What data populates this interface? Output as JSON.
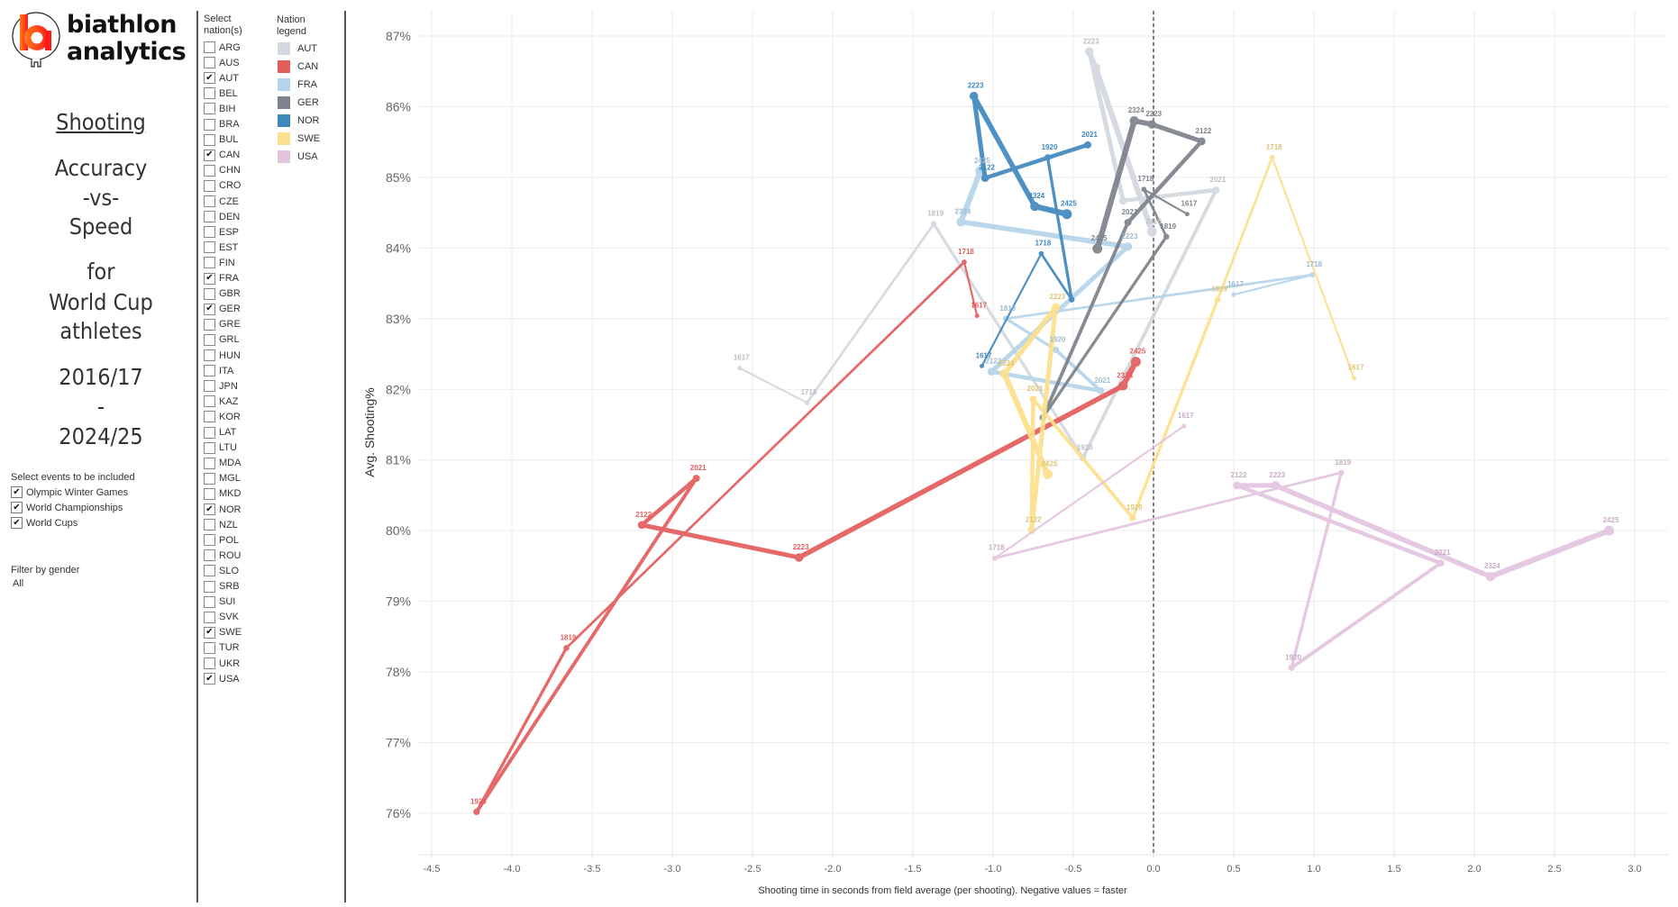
{
  "logo": {
    "line1": "biathlon",
    "line2": "analytics",
    "accent_color": "#ff3b1f"
  },
  "title": {
    "lines": [
      "Shooting",
      "Accuracy",
      "-vs-",
      "Speed",
      "for",
      "World Cup",
      "athletes",
      "2016/17",
      "-",
      "2024/25"
    ]
  },
  "events_filter": {
    "label": "Select events to be included",
    "items": [
      {
        "label": "Olympic Winter Games",
        "checked": true
      },
      {
        "label": "World Championships",
        "checked": true
      },
      {
        "label": "World Cups",
        "checked": true
      }
    ]
  },
  "gender_filter": {
    "label": "Filter by gender",
    "value": "All"
  },
  "nation_select": {
    "label_line1": "Select",
    "label_line2": "nation(s)",
    "items": [
      {
        "code": "ARG",
        "checked": false
      },
      {
        "code": "AUS",
        "checked": false
      },
      {
        "code": "AUT",
        "checked": true
      },
      {
        "code": "BEL",
        "checked": false
      },
      {
        "code": "BIH",
        "checked": false
      },
      {
        "code": "BRA",
        "checked": false
      },
      {
        "code": "BUL",
        "checked": false
      },
      {
        "code": "CAN",
        "checked": true
      },
      {
        "code": "CHN",
        "checked": false
      },
      {
        "code": "CRO",
        "checked": false
      },
      {
        "code": "CZE",
        "checked": false
      },
      {
        "code": "DEN",
        "checked": false
      },
      {
        "code": "ESP",
        "checked": false
      },
      {
        "code": "EST",
        "checked": false
      },
      {
        "code": "FIN",
        "checked": false
      },
      {
        "code": "FRA",
        "checked": true
      },
      {
        "code": "GBR",
        "checked": false
      },
      {
        "code": "GER",
        "checked": true
      },
      {
        "code": "GRE",
        "checked": false
      },
      {
        "code": "GRL",
        "checked": false
      },
      {
        "code": "HUN",
        "checked": false
      },
      {
        "code": "ITA",
        "checked": false
      },
      {
        "code": "JPN",
        "checked": false
      },
      {
        "code": "KAZ",
        "checked": false
      },
      {
        "code": "KOR",
        "checked": false
      },
      {
        "code": "LAT",
        "checked": false
      },
      {
        "code": "LTU",
        "checked": false
      },
      {
        "code": "MDA",
        "checked": false
      },
      {
        "code": "MGL",
        "checked": false
      },
      {
        "code": "MKD",
        "checked": false
      },
      {
        "code": "NOR",
        "checked": true
      },
      {
        "code": "NZL",
        "checked": false
      },
      {
        "code": "POL",
        "checked": false
      },
      {
        "code": "ROU",
        "checked": false
      },
      {
        "code": "SLO",
        "checked": false
      },
      {
        "code": "SRB",
        "checked": false
      },
      {
        "code": "SUI",
        "checked": false
      },
      {
        "code": "SVK",
        "checked": false
      },
      {
        "code": "SWE",
        "checked": true
      },
      {
        "code": "TUR",
        "checked": false
      },
      {
        "code": "UKR",
        "checked": false
      },
      {
        "code": "USA",
        "checked": true
      }
    ]
  },
  "nation_legend": {
    "label_line1": "Nation",
    "label_line2": "legend",
    "items": [
      {
        "code": "AUT",
        "color": "#d3d9e0"
      },
      {
        "code": "CAN",
        "color": "#e35d5d"
      },
      {
        "code": "FRA",
        "color": "#b5d4eb"
      },
      {
        "code": "GER",
        "color": "#7d838c"
      },
      {
        "code": "NOR",
        "color": "#3f88bd"
      },
      {
        "code": "SWE",
        "color": "#fde08c"
      },
      {
        "code": "USA",
        "color": "#e3c4df"
      }
    ]
  },
  "chart_data": {
    "type": "line",
    "title": "Shooting Accuracy -vs- Speed",
    "xlabel": "Shooting time in seconds from field average (per shooting). Negative values = faster",
    "ylabel": "Avg. Shooting%",
    "xlim": [
      -4.55,
      3.2
    ],
    "ylim": [
      75.4,
      87.35
    ],
    "x_ticks": [
      "-4.5",
      "-4.0",
      "-3.5",
      "-3.0",
      "-2.5",
      "-2.0",
      "-1.5",
      "-1.0",
      "-0.5",
      "0.0",
      "0.5",
      "1.0",
      "1.5",
      "2.0",
      "2.5",
      "3.0"
    ],
    "x_tick_values": [
      -4.5,
      -4.0,
      -3.5,
      -3.0,
      -2.5,
      -2.0,
      -1.5,
      -1.0,
      -0.5,
      0.0,
      0.5,
      1.0,
      1.5,
      2.0,
      2.5,
      3.0
    ],
    "y_ticks": [
      "76%",
      "77%",
      "78%",
      "79%",
      "80%",
      "81%",
      "82%",
      "83%",
      "84%",
      "85%",
      "86%",
      "87%"
    ],
    "y_tick_values": [
      76,
      77,
      78,
      79,
      80,
      81,
      82,
      83,
      84,
      85,
      86,
      87
    ],
    "reference_line_x": 0.0,
    "grid": true,
    "seasons": [
      "1617",
      "1718",
      "1819",
      "1920",
      "2021",
      "2122",
      "2223",
      "2324",
      "2425"
    ],
    "series": [
      {
        "name": "AUT",
        "color": "#d3d9e0",
        "points": [
          {
            "season": "1617",
            "x": -2.58,
            "y": 82.3
          },
          {
            "season": "1718",
            "x": -2.16,
            "y": 81.81
          },
          {
            "season": "1819",
            "x": -1.37,
            "y": 84.34
          },
          {
            "season": "1920",
            "x": -0.44,
            "y": 81.03
          },
          {
            "season": "2021",
            "x": 0.39,
            "y": 84.82
          },
          {
            "season": "2122",
            "x": -0.19,
            "y": 84.67,
            "hide_label": true
          },
          {
            "season": "2223",
            "x": -0.4,
            "y": 86.78
          },
          {
            "season": "2324",
            "x": -0.36,
            "y": 86.55,
            "hide_label": true
          },
          {
            "season": "2425",
            "x": -0.01,
            "y": 84.23
          }
        ]
      },
      {
        "name": "CAN",
        "color": "#e35d5d",
        "points": [
          {
            "season": "1617",
            "x": -1.1,
            "y": 83.04
          },
          {
            "season": "1718",
            "x": -1.18,
            "y": 83.8
          },
          {
            "season": "1819",
            "x": -3.66,
            "y": 78.34
          },
          {
            "season": "1920",
            "x": -4.22,
            "y": 76.02
          },
          {
            "season": "2021",
            "x": -2.85,
            "y": 80.74
          },
          {
            "season": "2122",
            "x": -3.19,
            "y": 80.08
          },
          {
            "season": "2223",
            "x": -2.21,
            "y": 79.62
          },
          {
            "season": "2324",
            "x": -0.19,
            "y": 82.05
          },
          {
            "season": "2425",
            "x": -0.11,
            "y": 82.39
          }
        ]
      },
      {
        "name": "FRA",
        "color": "#b5d4eb",
        "points": [
          {
            "season": "1617",
            "x": 0.5,
            "y": 83.34
          },
          {
            "season": "1718",
            "x": 0.99,
            "y": 83.62
          },
          {
            "season": "1819",
            "x": -0.92,
            "y": 83.0
          },
          {
            "season": "1920",
            "x": -0.61,
            "y": 82.56
          },
          {
            "season": "2021",
            "x": -0.33,
            "y": 81.98
          },
          {
            "season": "2122",
            "x": -1.01,
            "y": 82.25
          },
          {
            "season": "2223",
            "x": -0.16,
            "y": 84.02
          },
          {
            "season": "2324",
            "x": -1.2,
            "y": 84.37
          },
          {
            "season": "2425",
            "x": -1.08,
            "y": 85.09
          }
        ]
      },
      {
        "name": "GER",
        "color": "#7d838c",
        "points": [
          {
            "season": "1617",
            "x": 0.21,
            "y": 84.48
          },
          {
            "season": "1718",
            "x": -0.06,
            "y": 84.83
          },
          {
            "season": "1819",
            "x": 0.08,
            "y": 84.16
          },
          {
            "season": "1920",
            "x": -0.69,
            "y": 81.6,
            "hide_label": true
          },
          {
            "season": "2021",
            "x": -0.16,
            "y": 84.36
          },
          {
            "season": "2122",
            "x": 0.3,
            "y": 85.51
          },
          {
            "season": "2223",
            "x": -0.01,
            "y": 85.75
          },
          {
            "season": "2324",
            "x": -0.12,
            "y": 85.8
          },
          {
            "season": "2425",
            "x": -0.35,
            "y": 83.99
          }
        ]
      },
      {
        "name": "NOR",
        "color": "#3f88bd",
        "points": [
          {
            "season": "1617",
            "x": -1.07,
            "y": 82.33
          },
          {
            "season": "1718",
            "x": -0.7,
            "y": 83.92
          },
          {
            "season": "1819",
            "x": -0.51,
            "y": 83.27,
            "hide_label": true
          },
          {
            "season": "1920",
            "x": -0.66,
            "y": 85.28
          },
          {
            "season": "2021",
            "x": -0.41,
            "y": 85.46
          },
          {
            "season": "2122",
            "x": -1.05,
            "y": 84.99
          },
          {
            "season": "2223",
            "x": -1.12,
            "y": 86.15
          },
          {
            "season": "2324",
            "x": -0.74,
            "y": 84.59
          },
          {
            "season": "2425",
            "x": -0.54,
            "y": 84.48
          }
        ]
      },
      {
        "name": "SWE",
        "color": "#fde08c",
        "points": [
          {
            "season": "1617",
            "x": 1.25,
            "y": 82.16
          },
          {
            "season": "1718",
            "x": 0.74,
            "y": 85.28
          },
          {
            "season": "1819",
            "x": 0.4,
            "y": 83.27
          },
          {
            "season": "1920",
            "x": -0.13,
            "y": 80.18
          },
          {
            "season": "2021",
            "x": -0.75,
            "y": 81.86
          },
          {
            "season": "2122",
            "x": -0.76,
            "y": 80.01
          },
          {
            "season": "2223",
            "x": -0.61,
            "y": 83.16
          },
          {
            "season": "2324",
            "x": -0.93,
            "y": 82.22
          },
          {
            "season": "2425",
            "x": -0.66,
            "y": 80.8
          }
        ]
      },
      {
        "name": "USA",
        "color": "#e3c4df",
        "points": [
          {
            "season": "1617",
            "x": 0.19,
            "y": 81.48
          },
          {
            "season": "1718",
            "x": -0.99,
            "y": 79.61
          },
          {
            "season": "1819",
            "x": 1.17,
            "y": 80.82
          },
          {
            "season": "1920",
            "x": 0.86,
            "y": 78.06
          },
          {
            "season": "2021",
            "x": 1.79,
            "y": 79.54
          },
          {
            "season": "2122",
            "x": 0.52,
            "y": 80.64
          },
          {
            "season": "2223",
            "x": 0.76,
            "y": 80.64
          },
          {
            "season": "2324",
            "x": 2.1,
            "y": 79.35
          },
          {
            "season": "2425",
            "x": 2.84,
            "y": 80.0
          }
        ]
      }
    ]
  }
}
